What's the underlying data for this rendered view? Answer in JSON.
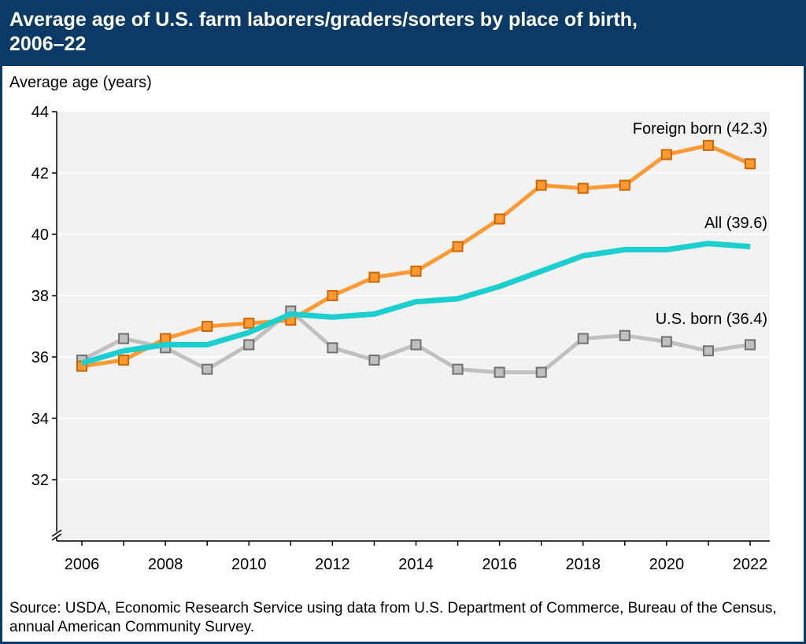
{
  "title": "Average age of U.S. farm laborers/graders/sorters by place of birth, 2006–22",
  "source": "Source: USDA, Economic Research Service using data from U.S. Department of Commerce, Bureau of the Census, annual American Community Survey.",
  "colors": {
    "header": "#0b3a66",
    "foreign_born": "#ff9933",
    "all": "#1ccfcf",
    "us_born": "#c0c0c0",
    "plot_bg": "#f2f2f2"
  },
  "chart_data": {
    "type": "line",
    "title": "Average age of U.S. farm laborers/graders/sorters by place of birth, 2006–22",
    "ylabel": "Average age (years)",
    "xlabel": "",
    "ylim": [
      30,
      44
    ],
    "y_axis_break": true,
    "yticks": [
      32,
      34,
      36,
      38,
      40,
      42,
      44
    ],
    "xticks": [
      2006,
      2008,
      2010,
      2012,
      2014,
      2016,
      2018,
      2020,
      2022
    ],
    "grid": "horizontal",
    "x": [
      2006,
      2007,
      2008,
      2009,
      2010,
      2011,
      2012,
      2013,
      2014,
      2015,
      2016,
      2017,
      2018,
      2019,
      2020,
      2021,
      2022
    ],
    "series": [
      {
        "name": "Foreign born (42.3)",
        "markers": true,
        "values": [
          35.7,
          35.9,
          36.6,
          37.0,
          37.1,
          37.2,
          38.0,
          38.6,
          38.8,
          39.6,
          40.5,
          41.6,
          41.5,
          41.6,
          42.6,
          42.9,
          42.3
        ]
      },
      {
        "name": "All (39.6)",
        "markers": false,
        "values": [
          35.8,
          36.2,
          36.4,
          36.4,
          36.8,
          37.4,
          37.3,
          37.4,
          37.8,
          37.9,
          38.3,
          38.8,
          39.3,
          39.5,
          39.5,
          39.7,
          39.6
        ]
      },
      {
        "name": "U.S. born (36.4)",
        "markers": true,
        "values": [
          35.9,
          36.6,
          36.3,
          35.6,
          36.4,
          37.5,
          36.3,
          35.9,
          36.4,
          35.6,
          35.5,
          35.5,
          36.6,
          36.7,
          36.5,
          36.2,
          36.4
        ]
      }
    ]
  }
}
